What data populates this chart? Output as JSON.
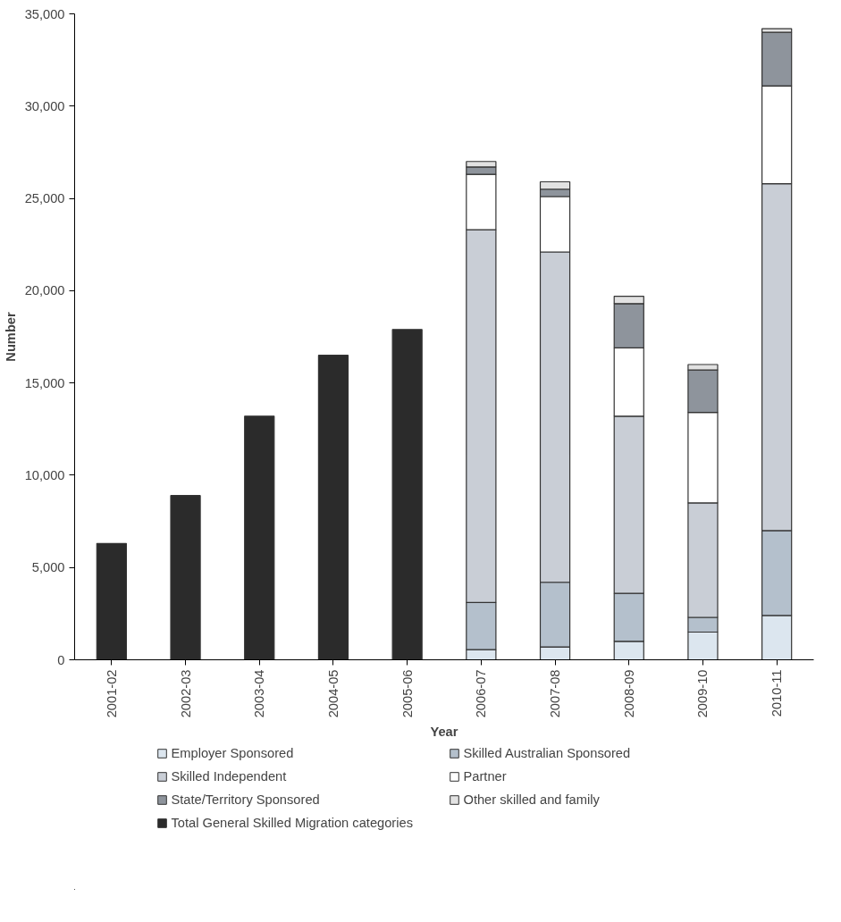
{
  "chart_data": {
    "type": "bar",
    "stacked": true,
    "xlabel": "Year",
    "ylabel": "Number",
    "categories": [
      "2001-02",
      "2002-03",
      "2003-04",
      "2004-05",
      "2005-06",
      "2006-07",
      "2007-08",
      "2008-09",
      "2009-10",
      "2010-11"
    ],
    "series": [
      {
        "name": "Employer Sponsored",
        "color": "#dce6ef",
        "values": [
          null,
          null,
          null,
          null,
          null,
          550,
          700,
          1000,
          1500,
          2400
        ]
      },
      {
        "name": "Skilled Australian Sponsored",
        "color": "#b4c0cc",
        "values": [
          null,
          null,
          null,
          null,
          null,
          2550,
          3500,
          2600,
          800,
          4600
        ]
      },
      {
        "name": "Skilled Independent",
        "color": "#c9ced6",
        "values": [
          null,
          null,
          null,
          null,
          null,
          20200,
          17900,
          9600,
          6200,
          18800
        ]
      },
      {
        "name": "Partner",
        "color": "#ffffff",
        "values": [
          null,
          null,
          null,
          null,
          null,
          3000,
          3000,
          3700,
          4900,
          5300
        ]
      },
      {
        "name": "State/Territory Sponsored",
        "color": "#8e949c",
        "values": [
          null,
          null,
          null,
          null,
          null,
          400,
          400,
          2400,
          2300,
          2900
        ]
      },
      {
        "name": "Other skilled and family",
        "color": "#e2e2e2",
        "values": [
          null,
          null,
          null,
          null,
          null,
          300,
          400,
          400,
          300,
          200
        ]
      },
      {
        "name": "Total General Skilled Migration categories",
        "color": "#2b2b2b",
        "values": [
          6300,
          8900,
          13200,
          16500,
          17900,
          null,
          null,
          null,
          null,
          null
        ]
      }
    ],
    "ylim": [
      0,
      35000
    ],
    "yticks": [
      0,
      {
        "value": 5000,
        "label": "5,000"
      },
      {
        "value": 10000,
        "label": "10,000"
      },
      {
        "value": 15000,
        "label": "15,000"
      },
      {
        "value": 20000,
        "label": "20,000"
      },
      {
        "value": 25000,
        "label": "25,000"
      },
      {
        "value": 30000,
        "label": "30,000"
      },
      {
        "value": 35000,
        "label": "35,000"
      }
    ],
    "grid": false,
    "legend": "bottom"
  }
}
